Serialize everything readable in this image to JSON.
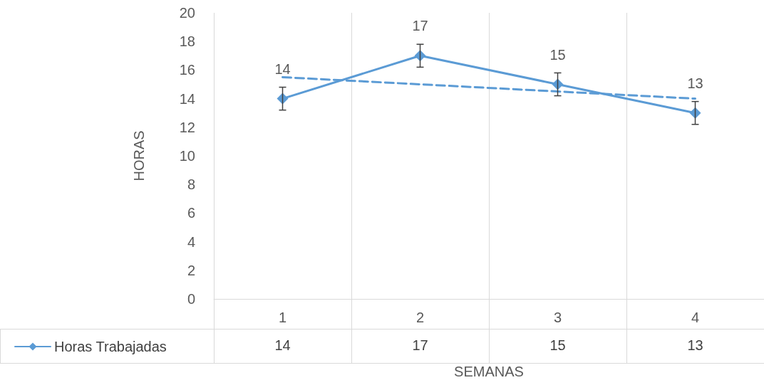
{
  "chart_data": {
    "type": "line",
    "xlabel": "SEMANAS",
    "ylabel": "HORAS",
    "categories": [
      "1",
      "2",
      "3",
      "4"
    ],
    "series": [
      {
        "name": "Horas Trabajadas",
        "color": "#5b9bd5",
        "values": [
          14,
          17,
          15,
          13
        ],
        "value_labels": [
          "14",
          "17",
          "15",
          "13"
        ],
        "errors": [
          0.8,
          0.8,
          0.8,
          0.8
        ],
        "marker": "diamond",
        "line_style": "solid"
      },
      {
        "color": "#5b9bd5",
        "values": [
          15.5,
          15,
          14.5,
          14
        ],
        "marker": "none",
        "line_style": "dashed"
      }
    ],
    "ylim": [
      0,
      20
    ],
    "yticks": [
      0,
      2,
      4,
      6,
      8,
      10,
      12,
      14,
      16,
      18,
      20
    ],
    "grid": "x",
    "legend": "bottom left"
  }
}
